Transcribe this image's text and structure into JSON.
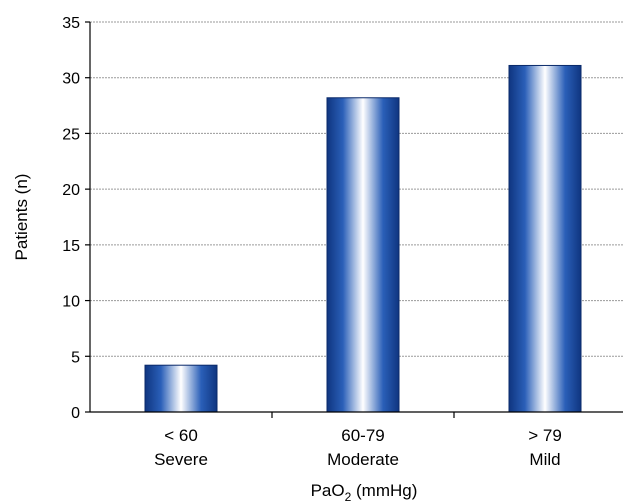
{
  "chart_data": {
    "type": "bar",
    "categories": [
      {
        "line1": "< 60",
        "line2": "Severe"
      },
      {
        "line1": "60-79",
        "line2": "Moderate"
      },
      {
        "line1": "> 79",
        "line2": "Mild"
      }
    ],
    "values": [
      4.2,
      28.2,
      31.1
    ],
    "ylabel": "Patients (n)",
    "xlabel": {
      "main": "PaO",
      "sub": "2",
      "unit": " (mmHg)"
    },
    "ylim": [
      0,
      35
    ],
    "yticks": [
      0,
      5,
      10,
      15,
      20,
      25,
      30,
      35
    ],
    "grid": true,
    "bar_color": "#1f4fa3",
    "bar_highlight": "#ffffff",
    "grid_color": "#9a9a9a"
  }
}
